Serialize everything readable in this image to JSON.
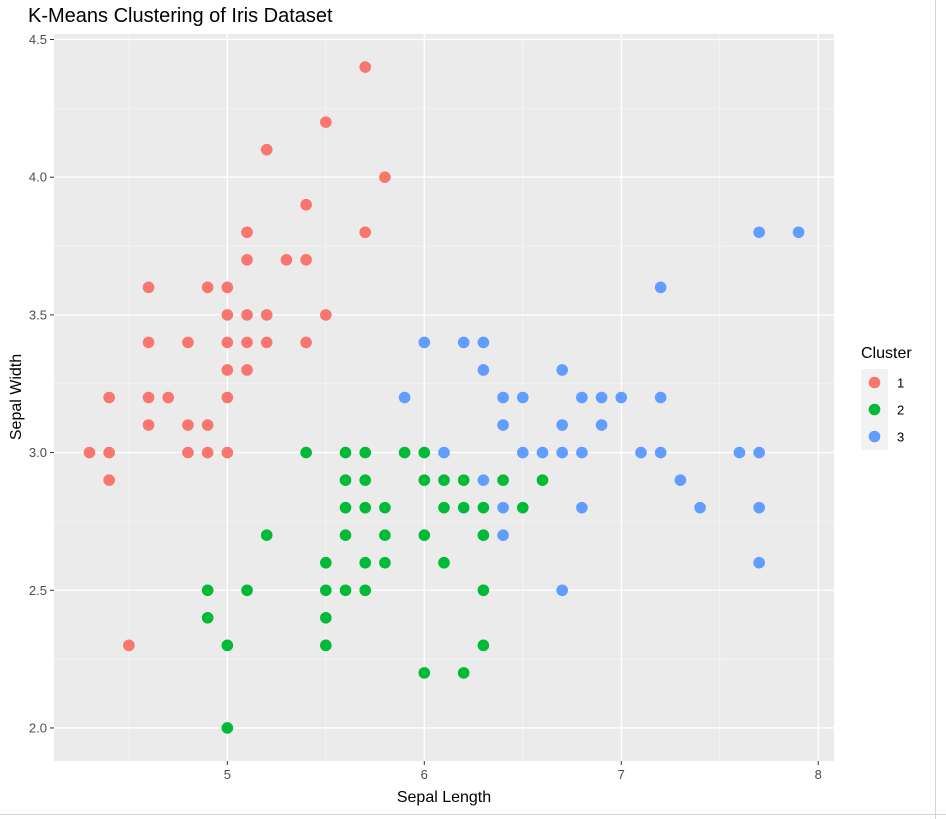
{
  "chart_data": {
    "type": "scatter",
    "title": "K-Means Clustering of Iris Dataset",
    "xlabel": "Sepal Length",
    "ylabel": "Sepal Width",
    "xlim": [
      4.12,
      8.08
    ],
    "ylim": [
      1.88,
      4.52
    ],
    "x_ticks": [
      5,
      6,
      7,
      8
    ],
    "y_ticks": [
      2.0,
      2.5,
      3.0,
      3.5,
      4.0,
      4.5
    ],
    "x_tick_labels": [
      "5",
      "6",
      "7",
      "8"
    ],
    "y_tick_labels": [
      "2.0",
      "2.5",
      "3.0",
      "3.5",
      "4.0",
      "4.5"
    ],
    "grid": true,
    "legend": {
      "title": "Cluster",
      "position": "right"
    },
    "series": [
      {
        "name": "1",
        "color": "#F8766D",
        "points": [
          [
            5.7,
            4.4
          ],
          [
            5.5,
            4.2
          ],
          [
            5.2,
            4.1
          ],
          [
            5.8,
            4.0
          ],
          [
            5.4,
            3.9
          ],
          [
            5.1,
            3.8
          ],
          [
            5.7,
            3.8
          ],
          [
            5.1,
            3.7
          ],
          [
            5.3,
            3.7
          ],
          [
            5.4,
            3.7
          ],
          [
            4.6,
            3.6
          ],
          [
            4.9,
            3.6
          ],
          [
            5.0,
            3.6
          ],
          [
            5.0,
            3.5
          ],
          [
            5.1,
            3.5
          ],
          [
            5.2,
            3.5
          ],
          [
            5.5,
            3.5
          ],
          [
            4.6,
            3.4
          ],
          [
            4.8,
            3.4
          ],
          [
            5.0,
            3.4
          ],
          [
            5.1,
            3.4
          ],
          [
            5.2,
            3.4
          ],
          [
            5.4,
            3.4
          ],
          [
            5.0,
            3.3
          ],
          [
            5.1,
            3.3
          ],
          [
            4.4,
            3.2
          ],
          [
            4.6,
            3.2
          ],
          [
            4.7,
            3.2
          ],
          [
            5.0,
            3.2
          ],
          [
            4.6,
            3.1
          ],
          [
            4.8,
            3.1
          ],
          [
            4.9,
            3.1
          ],
          [
            4.3,
            3.0
          ],
          [
            4.4,
            3.0
          ],
          [
            4.8,
            3.0
          ],
          [
            4.9,
            3.0
          ],
          [
            5.0,
            3.0
          ],
          [
            4.4,
            2.9
          ],
          [
            4.5,
            2.3
          ]
        ]
      },
      {
        "name": "2",
        "color": "#00BA38",
        "points": [
          [
            5.4,
            3.0
          ],
          [
            5.6,
            3.0
          ],
          [
            5.7,
            3.0
          ],
          [
            5.9,
            3.0
          ],
          [
            6.0,
            3.0
          ],
          [
            5.6,
            2.9
          ],
          [
            5.7,
            2.9
          ],
          [
            6.0,
            2.9
          ],
          [
            6.1,
            2.9
          ],
          [
            6.2,
            2.9
          ],
          [
            6.4,
            2.9
          ],
          [
            6.6,
            2.9
          ],
          [
            5.6,
            2.8
          ],
          [
            5.7,
            2.8
          ],
          [
            5.8,
            2.8
          ],
          [
            6.1,
            2.8
          ],
          [
            6.2,
            2.8
          ],
          [
            6.3,
            2.8
          ],
          [
            6.5,
            2.8
          ],
          [
            5.2,
            2.7
          ],
          [
            5.6,
            2.7
          ],
          [
            5.8,
            2.7
          ],
          [
            6.0,
            2.7
          ],
          [
            6.3,
            2.7
          ],
          [
            5.5,
            2.6
          ],
          [
            5.7,
            2.6
          ],
          [
            5.8,
            2.6
          ],
          [
            6.1,
            2.6
          ],
          [
            4.9,
            2.5
          ],
          [
            5.1,
            2.5
          ],
          [
            5.5,
            2.5
          ],
          [
            5.6,
            2.5
          ],
          [
            5.7,
            2.5
          ],
          [
            6.3,
            2.5
          ],
          [
            4.9,
            2.4
          ],
          [
            5.5,
            2.4
          ],
          [
            5.0,
            2.3
          ],
          [
            5.5,
            2.3
          ],
          [
            6.3,
            2.3
          ],
          [
            6.0,
            2.2
          ],
          [
            6.2,
            2.2
          ],
          [
            5.0,
            2.0
          ]
        ]
      },
      {
        "name": "3",
        "color": "#619CFF",
        "points": [
          [
            7.7,
            3.8
          ],
          [
            7.9,
            3.8
          ],
          [
            7.2,
            3.6
          ],
          [
            6.0,
            3.4
          ],
          [
            6.2,
            3.4
          ],
          [
            6.3,
            3.4
          ],
          [
            6.3,
            3.3
          ],
          [
            6.7,
            3.3
          ],
          [
            5.9,
            3.2
          ],
          [
            6.4,
            3.2
          ],
          [
            6.5,
            3.2
          ],
          [
            6.8,
            3.2
          ],
          [
            6.9,
            3.2
          ],
          [
            7.0,
            3.2
          ],
          [
            7.2,
            3.2
          ],
          [
            6.4,
            3.1
          ],
          [
            6.7,
            3.1
          ],
          [
            6.9,
            3.1
          ],
          [
            6.1,
            3.0
          ],
          [
            6.5,
            3.0
          ],
          [
            6.6,
            3.0
          ],
          [
            6.7,
            3.0
          ],
          [
            6.8,
            3.0
          ],
          [
            7.1,
            3.0
          ],
          [
            7.2,
            3.0
          ],
          [
            7.6,
            3.0
          ],
          [
            7.7,
            3.0
          ],
          [
            6.3,
            2.9
          ],
          [
            7.3,
            2.9
          ],
          [
            6.4,
            2.8
          ],
          [
            6.8,
            2.8
          ],
          [
            7.4,
            2.8
          ],
          [
            7.7,
            2.8
          ],
          [
            6.4,
            2.7
          ],
          [
            7.7,
            2.6
          ],
          [
            6.7,
            2.5
          ]
        ]
      }
    ]
  }
}
